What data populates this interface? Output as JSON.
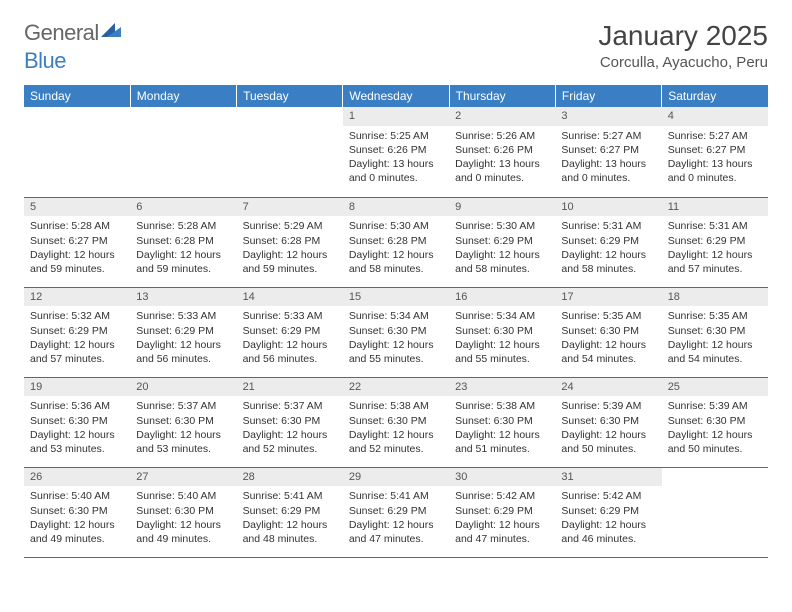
{
  "logo": {
    "general": "General",
    "blue": "Blue"
  },
  "title": "January 2025",
  "location": "Corculla, Ayacucho, Peru",
  "colors": {
    "header_bg": "#3a7fc4",
    "header_text": "#ffffff",
    "row_border": "#3a6fa8",
    "daynum_bg": "#ececec",
    "text": "#333333",
    "background": "#ffffff"
  },
  "weekdays": [
    "Sunday",
    "Monday",
    "Tuesday",
    "Wednesday",
    "Thursday",
    "Friday",
    "Saturday"
  ],
  "weeks": [
    [
      {
        "empty": true
      },
      {
        "empty": true
      },
      {
        "empty": true
      },
      {
        "day": "1",
        "sunrise": "Sunrise: 5:25 AM",
        "sunset": "Sunset: 6:26 PM",
        "daylight1": "Daylight: 13 hours",
        "daylight2": "and 0 minutes."
      },
      {
        "day": "2",
        "sunrise": "Sunrise: 5:26 AM",
        "sunset": "Sunset: 6:26 PM",
        "daylight1": "Daylight: 13 hours",
        "daylight2": "and 0 minutes."
      },
      {
        "day": "3",
        "sunrise": "Sunrise: 5:27 AM",
        "sunset": "Sunset: 6:27 PM",
        "daylight1": "Daylight: 13 hours",
        "daylight2": "and 0 minutes."
      },
      {
        "day": "4",
        "sunrise": "Sunrise: 5:27 AM",
        "sunset": "Sunset: 6:27 PM",
        "daylight1": "Daylight: 13 hours",
        "daylight2": "and 0 minutes."
      }
    ],
    [
      {
        "day": "5",
        "sunrise": "Sunrise: 5:28 AM",
        "sunset": "Sunset: 6:27 PM",
        "daylight1": "Daylight: 12 hours",
        "daylight2": "and 59 minutes."
      },
      {
        "day": "6",
        "sunrise": "Sunrise: 5:28 AM",
        "sunset": "Sunset: 6:28 PM",
        "daylight1": "Daylight: 12 hours",
        "daylight2": "and 59 minutes."
      },
      {
        "day": "7",
        "sunrise": "Sunrise: 5:29 AM",
        "sunset": "Sunset: 6:28 PM",
        "daylight1": "Daylight: 12 hours",
        "daylight2": "and 59 minutes."
      },
      {
        "day": "8",
        "sunrise": "Sunrise: 5:30 AM",
        "sunset": "Sunset: 6:28 PM",
        "daylight1": "Daylight: 12 hours",
        "daylight2": "and 58 minutes."
      },
      {
        "day": "9",
        "sunrise": "Sunrise: 5:30 AM",
        "sunset": "Sunset: 6:29 PM",
        "daylight1": "Daylight: 12 hours",
        "daylight2": "and 58 minutes."
      },
      {
        "day": "10",
        "sunrise": "Sunrise: 5:31 AM",
        "sunset": "Sunset: 6:29 PM",
        "daylight1": "Daylight: 12 hours",
        "daylight2": "and 58 minutes."
      },
      {
        "day": "11",
        "sunrise": "Sunrise: 5:31 AM",
        "sunset": "Sunset: 6:29 PM",
        "daylight1": "Daylight: 12 hours",
        "daylight2": "and 57 minutes."
      }
    ],
    [
      {
        "day": "12",
        "sunrise": "Sunrise: 5:32 AM",
        "sunset": "Sunset: 6:29 PM",
        "daylight1": "Daylight: 12 hours",
        "daylight2": "and 57 minutes."
      },
      {
        "day": "13",
        "sunrise": "Sunrise: 5:33 AM",
        "sunset": "Sunset: 6:29 PM",
        "daylight1": "Daylight: 12 hours",
        "daylight2": "and 56 minutes."
      },
      {
        "day": "14",
        "sunrise": "Sunrise: 5:33 AM",
        "sunset": "Sunset: 6:29 PM",
        "daylight1": "Daylight: 12 hours",
        "daylight2": "and 56 minutes."
      },
      {
        "day": "15",
        "sunrise": "Sunrise: 5:34 AM",
        "sunset": "Sunset: 6:30 PM",
        "daylight1": "Daylight: 12 hours",
        "daylight2": "and 55 minutes."
      },
      {
        "day": "16",
        "sunrise": "Sunrise: 5:34 AM",
        "sunset": "Sunset: 6:30 PM",
        "daylight1": "Daylight: 12 hours",
        "daylight2": "and 55 minutes."
      },
      {
        "day": "17",
        "sunrise": "Sunrise: 5:35 AM",
        "sunset": "Sunset: 6:30 PM",
        "daylight1": "Daylight: 12 hours",
        "daylight2": "and 54 minutes."
      },
      {
        "day": "18",
        "sunrise": "Sunrise: 5:35 AM",
        "sunset": "Sunset: 6:30 PM",
        "daylight1": "Daylight: 12 hours",
        "daylight2": "and 54 minutes."
      }
    ],
    [
      {
        "day": "19",
        "sunrise": "Sunrise: 5:36 AM",
        "sunset": "Sunset: 6:30 PM",
        "daylight1": "Daylight: 12 hours",
        "daylight2": "and 53 minutes."
      },
      {
        "day": "20",
        "sunrise": "Sunrise: 5:37 AM",
        "sunset": "Sunset: 6:30 PM",
        "daylight1": "Daylight: 12 hours",
        "daylight2": "and 53 minutes."
      },
      {
        "day": "21",
        "sunrise": "Sunrise: 5:37 AM",
        "sunset": "Sunset: 6:30 PM",
        "daylight1": "Daylight: 12 hours",
        "daylight2": "and 52 minutes."
      },
      {
        "day": "22",
        "sunrise": "Sunrise: 5:38 AM",
        "sunset": "Sunset: 6:30 PM",
        "daylight1": "Daylight: 12 hours",
        "daylight2": "and 52 minutes."
      },
      {
        "day": "23",
        "sunrise": "Sunrise: 5:38 AM",
        "sunset": "Sunset: 6:30 PM",
        "daylight1": "Daylight: 12 hours",
        "daylight2": "and 51 minutes."
      },
      {
        "day": "24",
        "sunrise": "Sunrise: 5:39 AM",
        "sunset": "Sunset: 6:30 PM",
        "daylight1": "Daylight: 12 hours",
        "daylight2": "and 50 minutes."
      },
      {
        "day": "25",
        "sunrise": "Sunrise: 5:39 AM",
        "sunset": "Sunset: 6:30 PM",
        "daylight1": "Daylight: 12 hours",
        "daylight2": "and 50 minutes."
      }
    ],
    [
      {
        "day": "26",
        "sunrise": "Sunrise: 5:40 AM",
        "sunset": "Sunset: 6:30 PM",
        "daylight1": "Daylight: 12 hours",
        "daylight2": "and 49 minutes."
      },
      {
        "day": "27",
        "sunrise": "Sunrise: 5:40 AM",
        "sunset": "Sunset: 6:30 PM",
        "daylight1": "Daylight: 12 hours",
        "daylight2": "and 49 minutes."
      },
      {
        "day": "28",
        "sunrise": "Sunrise: 5:41 AM",
        "sunset": "Sunset: 6:29 PM",
        "daylight1": "Daylight: 12 hours",
        "daylight2": "and 48 minutes."
      },
      {
        "day": "29",
        "sunrise": "Sunrise: 5:41 AM",
        "sunset": "Sunset: 6:29 PM",
        "daylight1": "Daylight: 12 hours",
        "daylight2": "and 47 minutes."
      },
      {
        "day": "30",
        "sunrise": "Sunrise: 5:42 AM",
        "sunset": "Sunset: 6:29 PM",
        "daylight1": "Daylight: 12 hours",
        "daylight2": "and 47 minutes."
      },
      {
        "day": "31",
        "sunrise": "Sunrise: 5:42 AM",
        "sunset": "Sunset: 6:29 PM",
        "daylight1": "Daylight: 12 hours",
        "daylight2": "and 46 minutes."
      },
      {
        "empty": true
      }
    ]
  ]
}
